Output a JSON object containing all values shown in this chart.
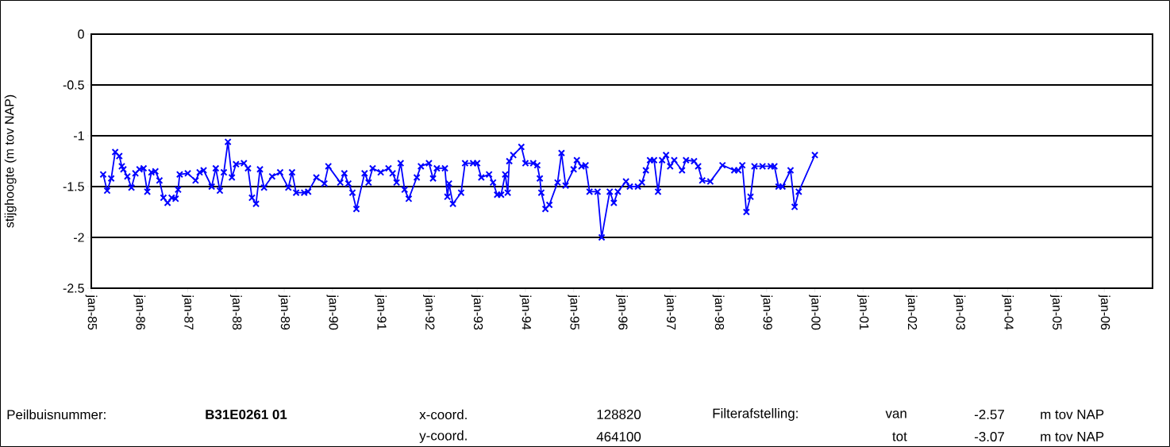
{
  "chart_data": {
    "type": "line",
    "ylabel": "stijghoogte (m tov NAP)",
    "x": [
      "1985-04",
      "1985-05",
      "1985-06",
      "1985-07",
      "1985-08-01",
      "1985-08-20",
      "1985-09",
      "1985-10",
      "1985-11",
      "1985-12",
      "1986-01",
      "1986-02",
      "1986-03",
      "1986-04",
      "1986-05",
      "1986-06",
      "1986-07",
      "1986-08",
      "1986-09",
      "1986-10-01",
      "1986-10-20",
      "1986-11",
      "1987-01",
      "1987-03",
      "1987-04",
      "1987-05",
      "1987-07",
      "1987-08",
      "1987-09",
      "1987-10",
      "1987-11",
      "1987-12",
      "1988-01",
      "1988-03",
      "1988-04",
      "1988-05",
      "1988-06",
      "1988-07",
      "1988-08",
      "1988-10",
      "1988-12",
      "1989-02",
      "1989-03",
      "1989-04",
      "1989-06",
      "1989-07",
      "1989-09",
      "1989-11",
      "1989-12",
      "1990-03",
      "1990-04",
      "1990-05",
      "1990-06",
      "1990-07",
      "1990-09",
      "1990-10",
      "1990-11",
      "1991-01",
      "1991-03",
      "1991-04",
      "1991-05",
      "1991-06",
      "1991-07",
      "1991-08",
      "1991-10",
      "1991-11",
      "1992-01",
      "1992-02",
      "1992-03",
      "1992-05-01",
      "1992-05-20",
      "1992-06",
      "1992-07",
      "1992-09",
      "1992-10",
      "1992-12",
      "1993-01",
      "1993-02",
      "1993-04",
      "1993-05",
      "1993-06",
      "1993-07",
      "1993-08-01",
      "1993-08-20",
      "1993-09",
      "1993-10",
      "1993-12",
      "1994-01",
      "1994-03",
      "1994-04-01",
      "1994-04-20",
      "1994-05",
      "1994-06",
      "1994-07",
      "1994-09",
      "1994-10",
      "1994-11",
      "1995-01-01",
      "1995-01-25",
      "1995-03",
      "1995-04",
      "1995-05",
      "1995-07",
      "1995-08",
      "1995-10",
      "1995-11",
      "1995-12",
      "1996-02",
      "1996-03",
      "1996-05",
      "1996-06",
      "1996-07",
      "1996-08",
      "1996-09",
      "1996-10",
      "1996-11",
      "1996-12",
      "1997-01",
      "1997-02",
      "1997-04",
      "1997-05",
      "1997-07",
      "1997-08",
      "1997-09",
      "1997-11",
      "1998-02",
      "1998-05",
      "1998-06",
      "1998-07",
      "1998-08",
      "1998-09",
      "1998-10",
      "1998-12",
      "1999-02",
      "1999-03",
      "1999-04",
      "1999-05",
      "1999-07",
      "1999-08",
      "1999-09",
      "2000-01"
    ],
    "series": [
      {
        "color": "#0000ff",
        "values": [
          -1.38,
          -1.54,
          -1.42,
          -1.16,
          -1.2,
          -1.3,
          -1.33,
          -1.4,
          -1.51,
          -1.37,
          -1.33,
          -1.32,
          -1.55,
          -1.36,
          -1.35,
          -1.44,
          -1.61,
          -1.66,
          -1.61,
          -1.62,
          -1.53,
          -1.38,
          -1.37,
          -1.44,
          -1.36,
          -1.34,
          -1.5,
          -1.32,
          -1.54,
          -1.36,
          -1.06,
          -1.41,
          -1.28,
          -1.27,
          -1.32,
          -1.61,
          -1.67,
          -1.33,
          -1.51,
          -1.4,
          -1.36,
          -1.51,
          -1.36,
          -1.56,
          -1.56,
          -1.55,
          -1.41,
          -1.47,
          -1.3,
          -1.46,
          -1.37,
          -1.47,
          -1.56,
          -1.72,
          -1.37,
          -1.46,
          -1.32,
          -1.36,
          -1.32,
          -1.37,
          -1.46,
          -1.27,
          -1.53,
          -1.62,
          -1.41,
          -1.3,
          -1.27,
          -1.42,
          -1.32,
          -1.32,
          -1.6,
          -1.47,
          -1.67,
          -1.56,
          -1.27,
          -1.27,
          -1.27,
          -1.41,
          -1.38,
          -1.46,
          -1.58,
          -1.58,
          -1.38,
          -1.56,
          -1.25,
          -1.19,
          -1.11,
          -1.27,
          -1.27,
          -1.29,
          -1.42,
          -1.56,
          -1.72,
          -1.68,
          -1.46,
          -1.17,
          -1.49,
          -1.33,
          -1.24,
          -1.3,
          -1.29,
          -1.55,
          -1.55,
          -2.0,
          -1.55,
          -1.66,
          -1.55,
          -1.45,
          -1.5,
          -1.5,
          -1.46,
          -1.34,
          -1.24,
          -1.24,
          -1.55,
          -1.24,
          -1.19,
          -1.3,
          -1.24,
          -1.34,
          -1.24,
          -1.25,
          -1.3,
          -1.44,
          -1.45,
          -1.29,
          -1.34,
          -1.34,
          -1.29,
          -1.75,
          -1.6,
          -1.3,
          -1.3,
          -1.3,
          -1.3,
          -1.5,
          -1.5,
          -1.34,
          -1.7,
          -1.55,
          -1.19
        ]
      }
    ],
    "xlim": [
      "1985-01",
      "2007-01"
    ],
    "xticks": [
      {
        "value": "1985-01",
        "label": "jan-85"
      },
      {
        "value": "1986-01",
        "label": "jan-86"
      },
      {
        "value": "1987-01",
        "label": "jan-87"
      },
      {
        "value": "1988-01",
        "label": "jan-88"
      },
      {
        "value": "1989-01",
        "label": "jan-89"
      },
      {
        "value": "1990-01",
        "label": "jan-90"
      },
      {
        "value": "1991-01",
        "label": "jan-91"
      },
      {
        "value": "1992-01",
        "label": "jan-92"
      },
      {
        "value": "1993-01",
        "label": "jan-93"
      },
      {
        "value": "1994-01",
        "label": "jan-94"
      },
      {
        "value": "1995-01",
        "label": "jan-95"
      },
      {
        "value": "1996-01",
        "label": "jan-96"
      },
      {
        "value": "1997-01",
        "label": "jan-97"
      },
      {
        "value": "1998-01",
        "label": "jan-98"
      },
      {
        "value": "1999-01",
        "label": "jan-99"
      },
      {
        "value": "2000-01",
        "label": "jan-00"
      },
      {
        "value": "2001-01",
        "label": "jan-01"
      },
      {
        "value": "2002-01",
        "label": "jan-02"
      },
      {
        "value": "2003-01",
        "label": "jan-03"
      },
      {
        "value": "2004-01",
        "label": "jan-04"
      },
      {
        "value": "2005-01",
        "label": "jan-05"
      },
      {
        "value": "2006-01",
        "label": "jan-06"
      }
    ],
    "ylim": [
      -2.5,
      0
    ],
    "yticks": [
      -2.5,
      -2,
      -1.5,
      -1,
      -0.5,
      0
    ],
    "grid": "y",
    "marker": "cross",
    "line_style": "solid",
    "annotations": [
      "Peilbuisnummer:",
      "B31E0261 01",
      "x-coord.",
      "128820",
      "Filterafstelling:",
      "van",
      "-2.57",
      "m tov NAP",
      "y-coord.",
      "464100",
      "tot",
      "-3.07",
      "m tov NAP"
    ]
  }
}
